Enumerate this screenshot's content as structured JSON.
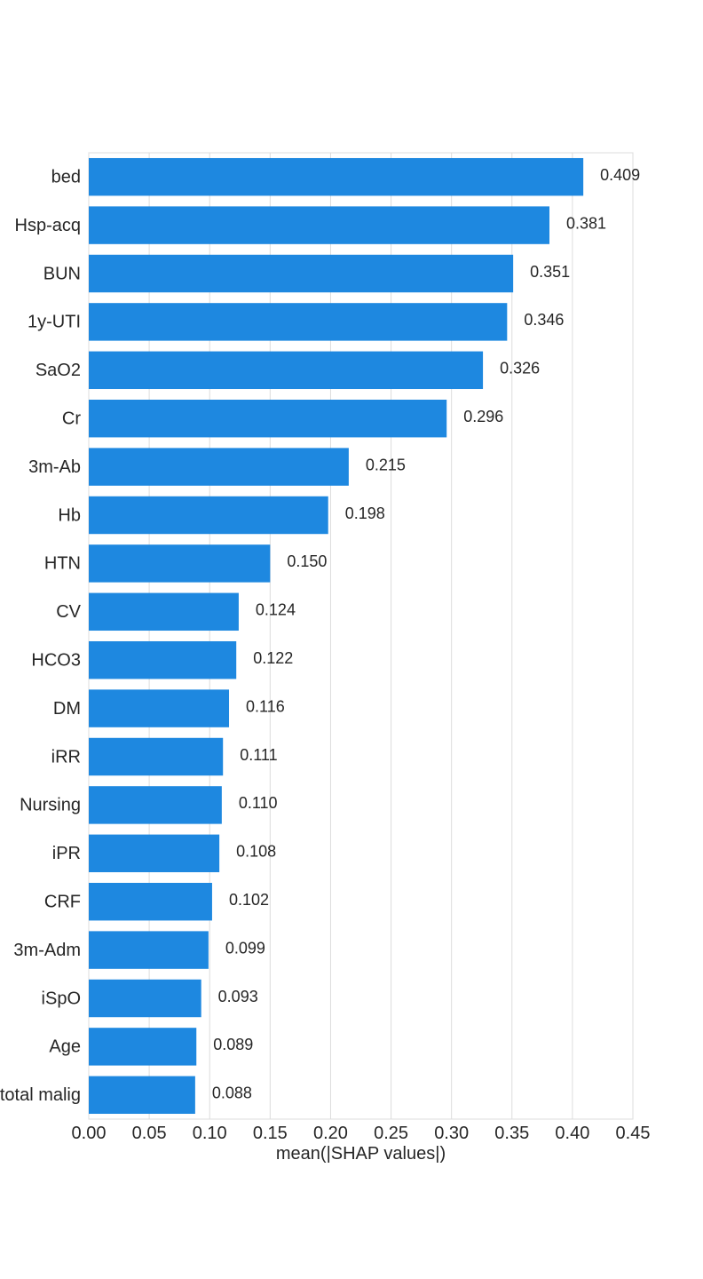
{
  "chart_data": {
    "type": "bar",
    "orientation": "horizontal",
    "title": "",
    "xlabel": "mean(|SHAP values|)",
    "ylabel": "",
    "xlim": [
      0.0,
      0.45
    ],
    "xticks": [
      0.0,
      0.05,
      0.1,
      0.15,
      0.2,
      0.25,
      0.3,
      0.35,
      0.4,
      0.45
    ],
    "xtick_labels": [
      "0.00",
      "0.05",
      "0.10",
      "0.15",
      "0.20",
      "0.25",
      "0.30",
      "0.35",
      "0.40",
      "0.45"
    ],
    "grid": "vertical",
    "bar_color": "#1e88e0",
    "categories": [
      "bed",
      "Hsp-acq",
      "BUN",
      "1y-UTI",
      "SaO2",
      "Cr",
      "3m-Ab",
      "Hb",
      "HTN",
      "CV",
      "HCO3",
      "DM",
      "iRR",
      "Nursing",
      "iPR",
      "CRF",
      "3m-Adm",
      "iSpO",
      "Age",
      "total malig"
    ],
    "values": [
      0.409,
      0.381,
      0.351,
      0.346,
      0.326,
      0.296,
      0.215,
      0.198,
      0.15,
      0.124,
      0.122,
      0.116,
      0.111,
      0.11,
      0.108,
      0.102,
      0.099,
      0.093,
      0.089,
      0.088
    ],
    "value_labels": [
      "0.409",
      "0.381",
      "0.351",
      "0.346",
      "0.326",
      "0.296",
      "0.215",
      "0.198",
      "0.150",
      "0.124",
      "0.122",
      "0.116",
      "0.111",
      "0.110",
      "0.108",
      "0.102",
      "0.099",
      "0.093",
      "0.089",
      "0.088"
    ]
  },
  "colors": {
    "bar": "#1e88e0",
    "grid": "#dcdcdc",
    "text": "#262626",
    "background": "#ffffff"
  }
}
